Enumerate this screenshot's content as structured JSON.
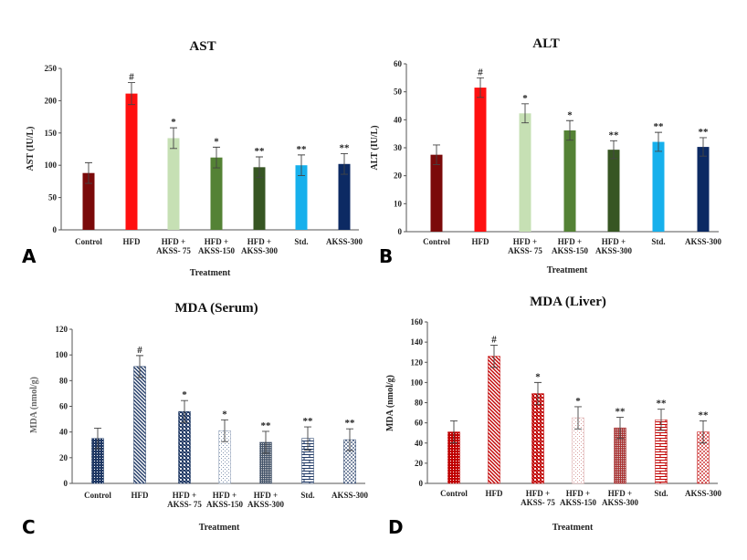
{
  "figure": {
    "panels": [
      "A",
      "B",
      "C",
      "D"
    ]
  },
  "chart_data": [
    {
      "id": "A",
      "type": "bar",
      "panel_letter": "A",
      "title": "AST",
      "xlabel": "Treatment",
      "ylabel": "AST (IU/L)",
      "ylim": [
        0,
        250
      ],
      "yticks": [
        0,
        50,
        100,
        150,
        200,
        250
      ],
      "grid": false,
      "categories": [
        [
          "Control"
        ],
        [
          "HFD"
        ],
        [
          "HFD +",
          "AKSS- 75"
        ],
        [
          "HFD +",
          "AKSS-150"
        ],
        [
          "HFD +",
          "AKSS-300"
        ],
        [
          "Std."
        ],
        [
          "AKSS-300"
        ]
      ],
      "values": [
        88,
        211,
        142,
        112,
        97,
        100,
        102
      ],
      "errors": [
        16,
        17,
        16,
        16,
        16,
        16,
        16
      ],
      "significance": [
        "",
        "#",
        "*",
        "*",
        "**",
        "**",
        "**"
      ],
      "colors": [
        "#7b0a0a",
        "#ff1010",
        "#c6e0b4",
        "#548235",
        "#375623",
        "#17b0ec",
        "#0c2a63"
      ],
      "patterns": [
        "solid",
        "solid",
        "solid",
        "solid",
        "solid",
        "solid",
        "solid"
      ]
    },
    {
      "id": "B",
      "type": "bar",
      "panel_letter": "B",
      "title": "ALT",
      "xlabel": "Treatment",
      "ylabel": "ALT (IU/L)",
      "ylim": [
        0,
        60
      ],
      "yticks": [
        0,
        10,
        20,
        30,
        40,
        50,
        60
      ],
      "grid": false,
      "categories": [
        [
          "Control"
        ],
        [
          "HFD"
        ],
        [
          "HFD +",
          "AKSS- 75"
        ],
        [
          "HFD +",
          "AKSS-150"
        ],
        [
          "HFD +",
          "AKSS-300"
        ],
        [
          "Std."
        ],
        [
          "AKSS-300"
        ]
      ],
      "values": [
        27.5,
        51.5,
        42.3,
        36.2,
        29.3,
        32.1,
        30.3
      ],
      "errors": [
        3.5,
        3.5,
        3.4,
        3.5,
        3.2,
        3.4,
        3.3
      ],
      "significance": [
        "",
        "#",
        "*",
        "*",
        "**",
        "**",
        "**"
      ],
      "colors": [
        "#7b0a0a",
        "#ff1010",
        "#c6e0b4",
        "#548235",
        "#375623",
        "#17b0ec",
        "#0c2a63"
      ],
      "patterns": [
        "solid",
        "solid",
        "solid",
        "solid",
        "solid",
        "solid",
        "solid"
      ]
    },
    {
      "id": "C",
      "type": "bar",
      "panel_letter": "C",
      "title": "MDA (Serum)",
      "xlabel": "Treatment",
      "ylabel": "MDA (nmol/g)",
      "ylim": [
        0,
        120
      ],
      "yticks": [
        0,
        20,
        40,
        60,
        80,
        100,
        120
      ],
      "grid": false,
      "categories": [
        [
          "Control"
        ],
        [
          "HFD"
        ],
        [
          "HFD +",
          "AKSS- 75"
        ],
        [
          "HFD +",
          "AKSS-150"
        ],
        [
          "HFD +",
          "AKSS-300"
        ],
        [
          "Std."
        ],
        [
          "AKSS-300"
        ]
      ],
      "values": [
        35,
        91,
        56,
        41,
        32,
        35,
        34
      ],
      "errors": [
        8,
        8.5,
        8.5,
        8.5,
        8.5,
        9,
        8.5
      ],
      "significance": [
        "",
        "#",
        "*",
        "*",
        "**",
        "**",
        "**"
      ],
      "colors": [
        "#1f3864",
        "#1f3864",
        "#1f3864",
        "#8496b0",
        "#44546a",
        "#1f3864",
        "#1f3864"
      ],
      "patterns": [
        "dots",
        "diag",
        "checker",
        "sparse",
        "grid",
        "brick",
        "dots2"
      ]
    },
    {
      "id": "D",
      "type": "bar",
      "panel_letter": "D",
      "title": "MDA (Liver)",
      "xlabel": "Treatment",
      "ylabel": "MDA (nmol/g)",
      "ylim": [
        0,
        160
      ],
      "yticks": [
        0,
        20,
        40,
        60,
        80,
        100,
        120,
        140,
        160
      ],
      "grid": false,
      "categories": [
        [
          "Control"
        ],
        [
          "HFD"
        ],
        [
          "HFD +",
          "AKSS- 75"
        ],
        [
          "HFD +",
          "AKSS-150"
        ],
        [
          "HFD +",
          "AKSS-300"
        ],
        [
          "Std."
        ],
        [
          "AKSS-300"
        ]
      ],
      "values": [
        51,
        126,
        89,
        65,
        55,
        63,
        51
      ],
      "errors": [
        11,
        11,
        11,
        11,
        10.5,
        10.5,
        11
      ],
      "significance": [
        "",
        "#",
        "*",
        "*",
        "**",
        "**",
        "**"
      ],
      "colors": [
        "#c00000",
        "#c00000",
        "#c00000",
        "#d9a0a0",
        "#a33",
        "#c00000",
        "#c00000"
      ],
      "patterns": [
        "dots",
        "diag",
        "checker",
        "sparse",
        "grid",
        "brick",
        "dots2"
      ]
    }
  ]
}
